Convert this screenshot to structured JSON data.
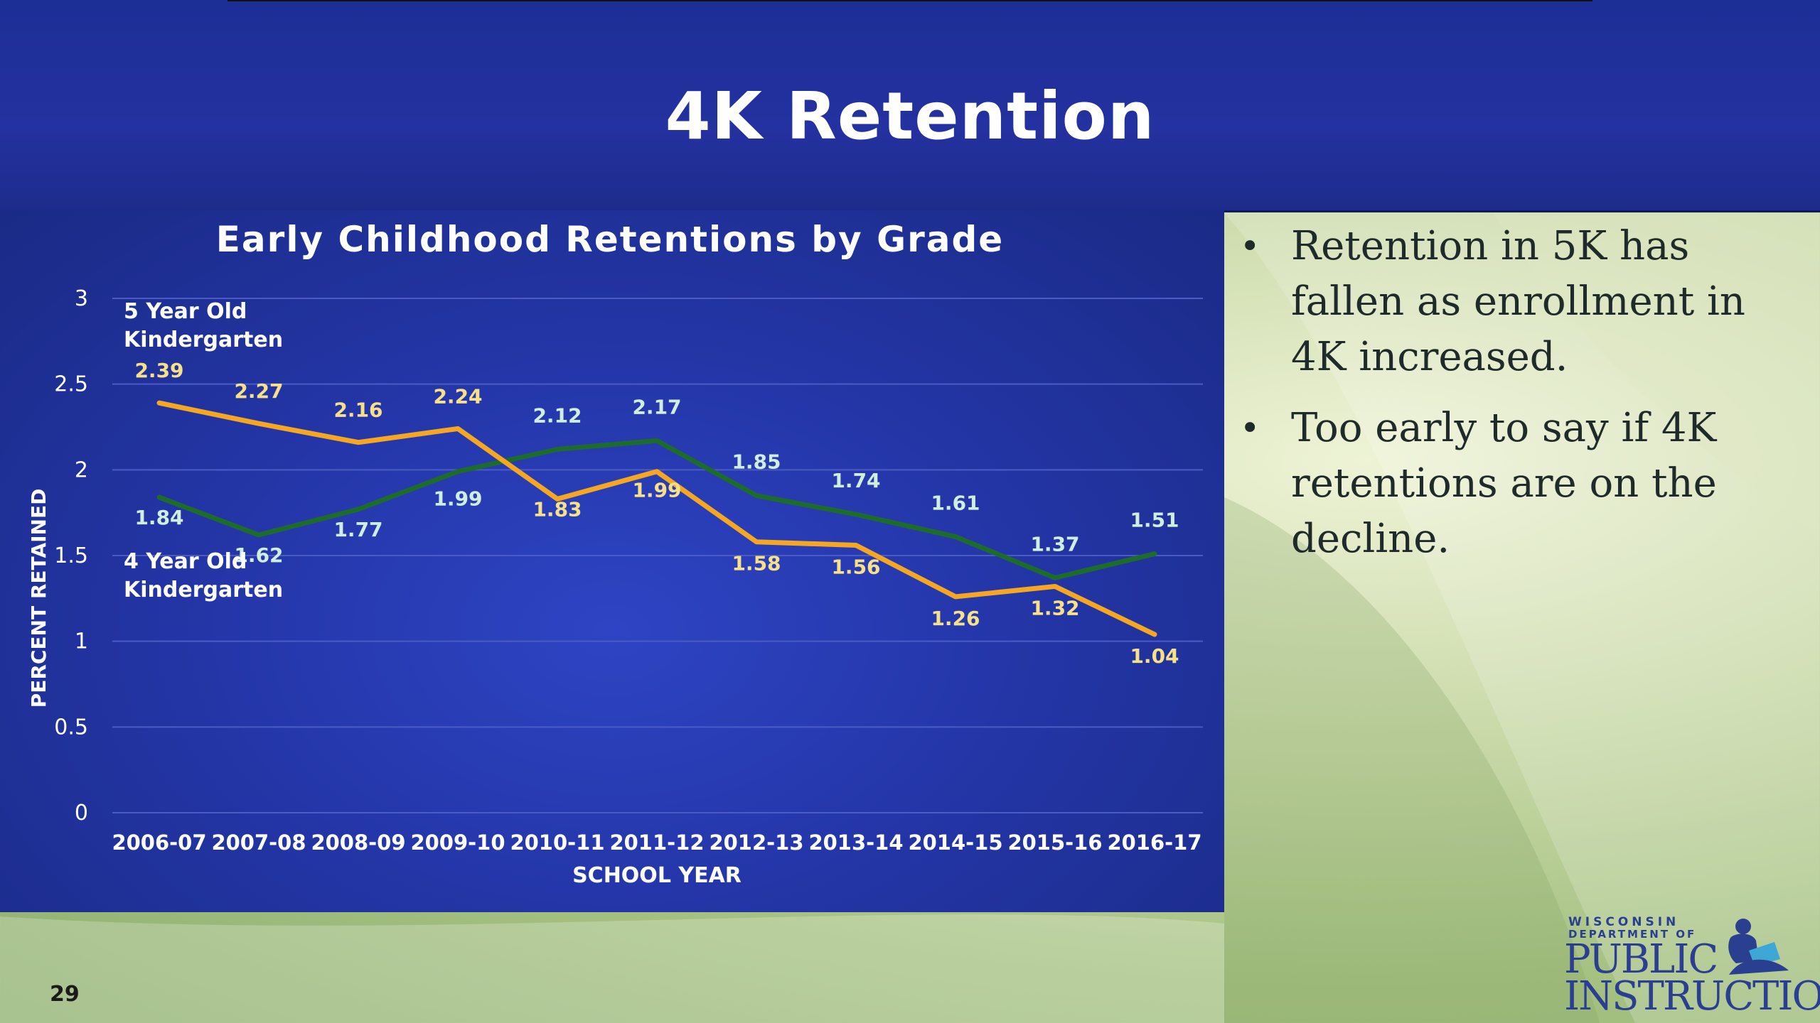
{
  "header": {
    "title": "4K Retention"
  },
  "bullets": [
    "Retention in 5K has fallen as enrollment in 4K increased.",
    "Too early to say if 4K retentions are on the decline."
  ],
  "page_number": "29",
  "logo": {
    "line1": "WISCONSIN",
    "line2": "DEPARTMENT OF",
    "line3": "PUBLIC",
    "line4": "INSTRUCTION"
  },
  "colors": {
    "header_bg": "#2431a0",
    "chart_bg": "#2436a8",
    "series_5k": "#f5a623",
    "series_4k": "#1e6b2e",
    "label_5k": "#f7e08a",
    "label_4k": "#cdeee0"
  },
  "chart_data": {
    "type": "line",
    "title": "Early Childhood Retentions by Grade",
    "xlabel": "SCHOOL YEAR",
    "ylabel": "PERCENT RETAINED",
    "ylim": [
      0,
      3
    ],
    "yticks": [
      "0",
      "0.5",
      "1",
      "1.5",
      "2",
      "2.5",
      "3"
    ],
    "grid": true,
    "categories": [
      "2006-07",
      "2007-08",
      "2008-09",
      "2009-10",
      "2010-11",
      "2011-12",
      "2012-13",
      "2013-14",
      "2014-15",
      "2015-16",
      "2016-17"
    ],
    "series": [
      {
        "name": "5 Year Old Kindergarten",
        "name_line1": "5 Year Old",
        "name_line2": "Kindergarten",
        "values": [
          2.39,
          2.27,
          2.16,
          2.24,
          1.83,
          1.99,
          1.58,
          1.56,
          1.26,
          1.32,
          1.04
        ],
        "labels": [
          "2.39",
          "2.27",
          "2.16",
          "2.24",
          "1.83",
          "1.99",
          "1.58",
          "1.56",
          "1.26",
          "1.32",
          "1.04"
        ]
      },
      {
        "name": "4 Year Old Kindergarten",
        "name_line1": "4 Year Old",
        "name_line2": "Kindergarten",
        "values": [
          1.84,
          1.62,
          1.77,
          1.99,
          2.12,
          2.17,
          1.85,
          1.74,
          1.61,
          1.37,
          1.51
        ],
        "labels": [
          "1.84",
          "1.62",
          "1.77",
          "1.99",
          "2.12",
          "2.17",
          "1.85",
          "1.74",
          "1.61",
          "1.37",
          "1.51"
        ]
      }
    ]
  }
}
